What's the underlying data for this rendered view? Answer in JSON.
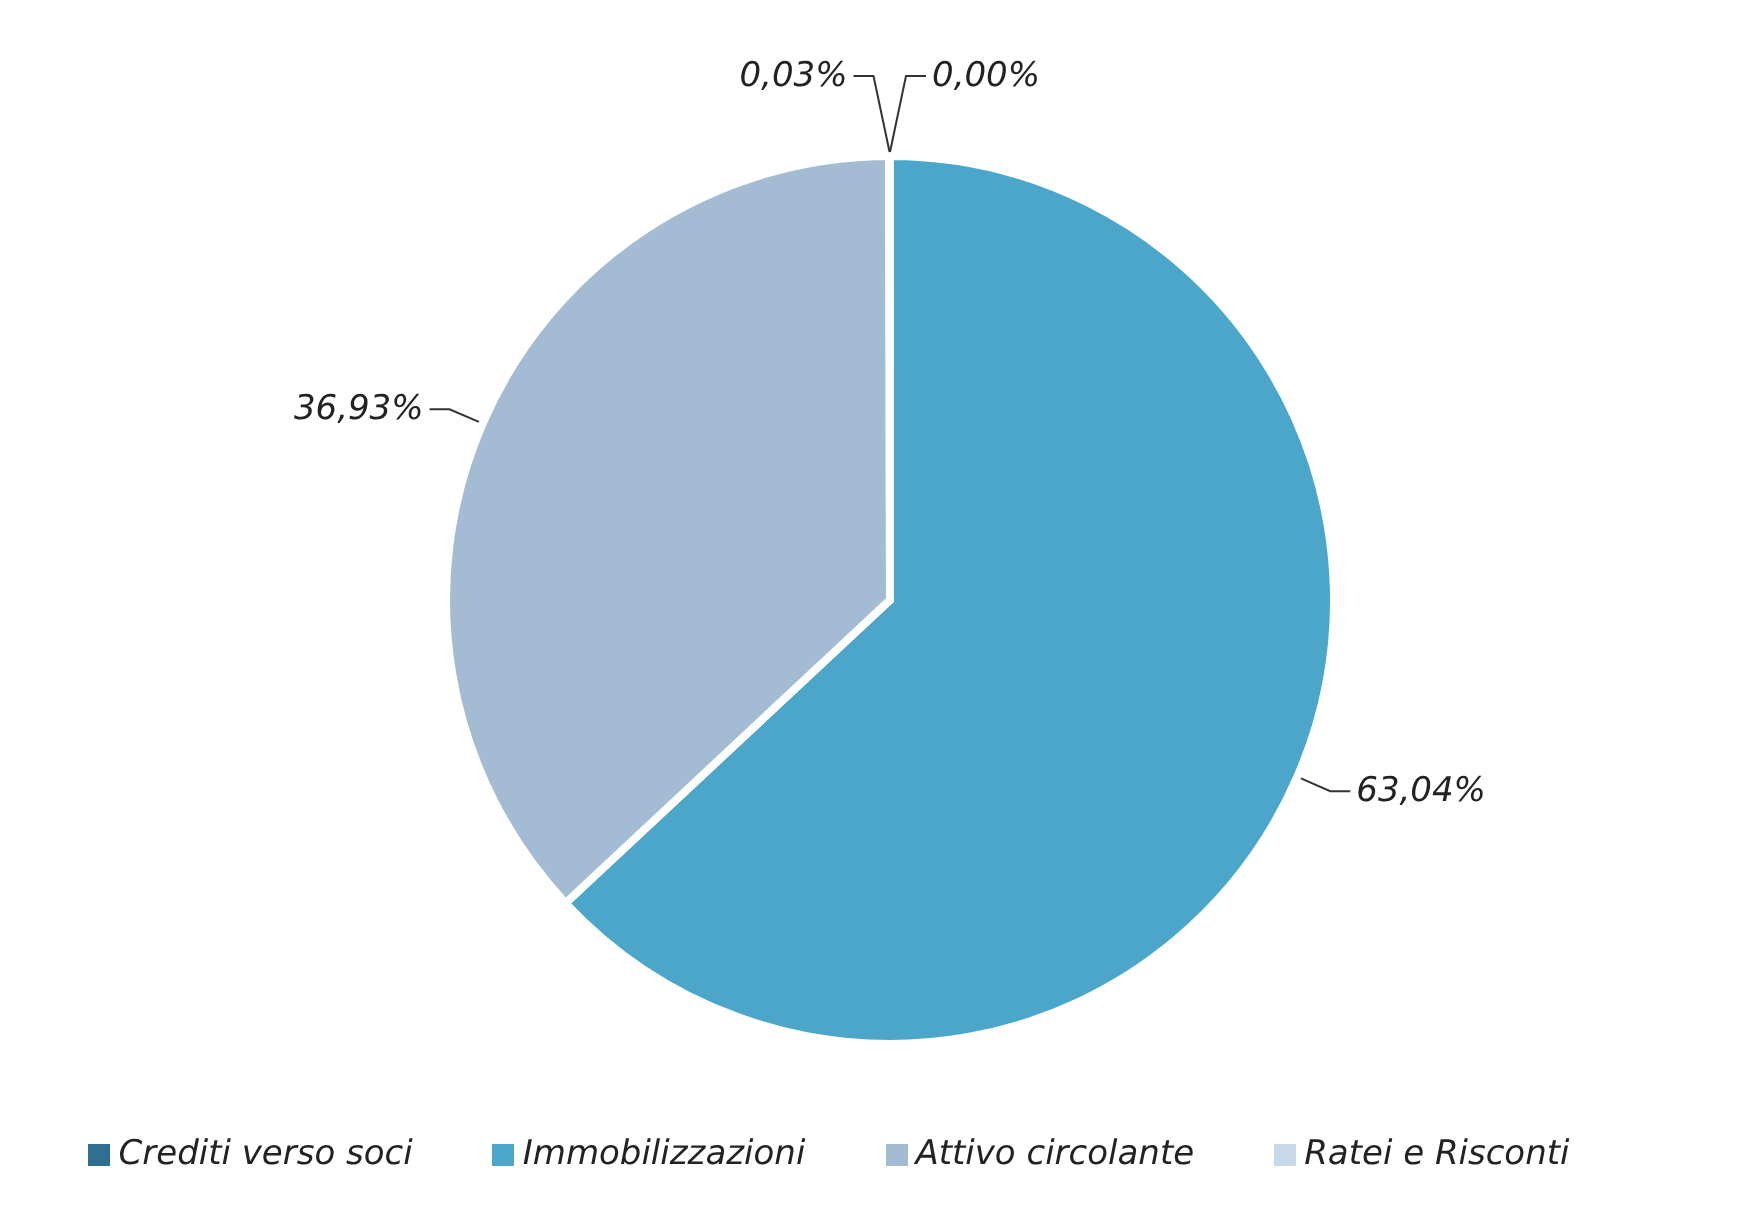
{
  "chart_data": {
    "type": "pie",
    "categories": [
      "Crediti verso soci",
      "Immobilizzazioni",
      "Attivo circolante",
      "Ratei e Risconti"
    ],
    "values": [
      0.0,
      63.04,
      36.93,
      0.03
    ],
    "colors": [
      "#2f6f8f",
      "#4ba6c9",
      "#a3bcd4",
      "#c9d9ec"
    ],
    "value_labels": [
      "0,00%",
      "63,04%",
      "36,93%",
      "0,03%"
    ],
    "legend": "bottom"
  }
}
